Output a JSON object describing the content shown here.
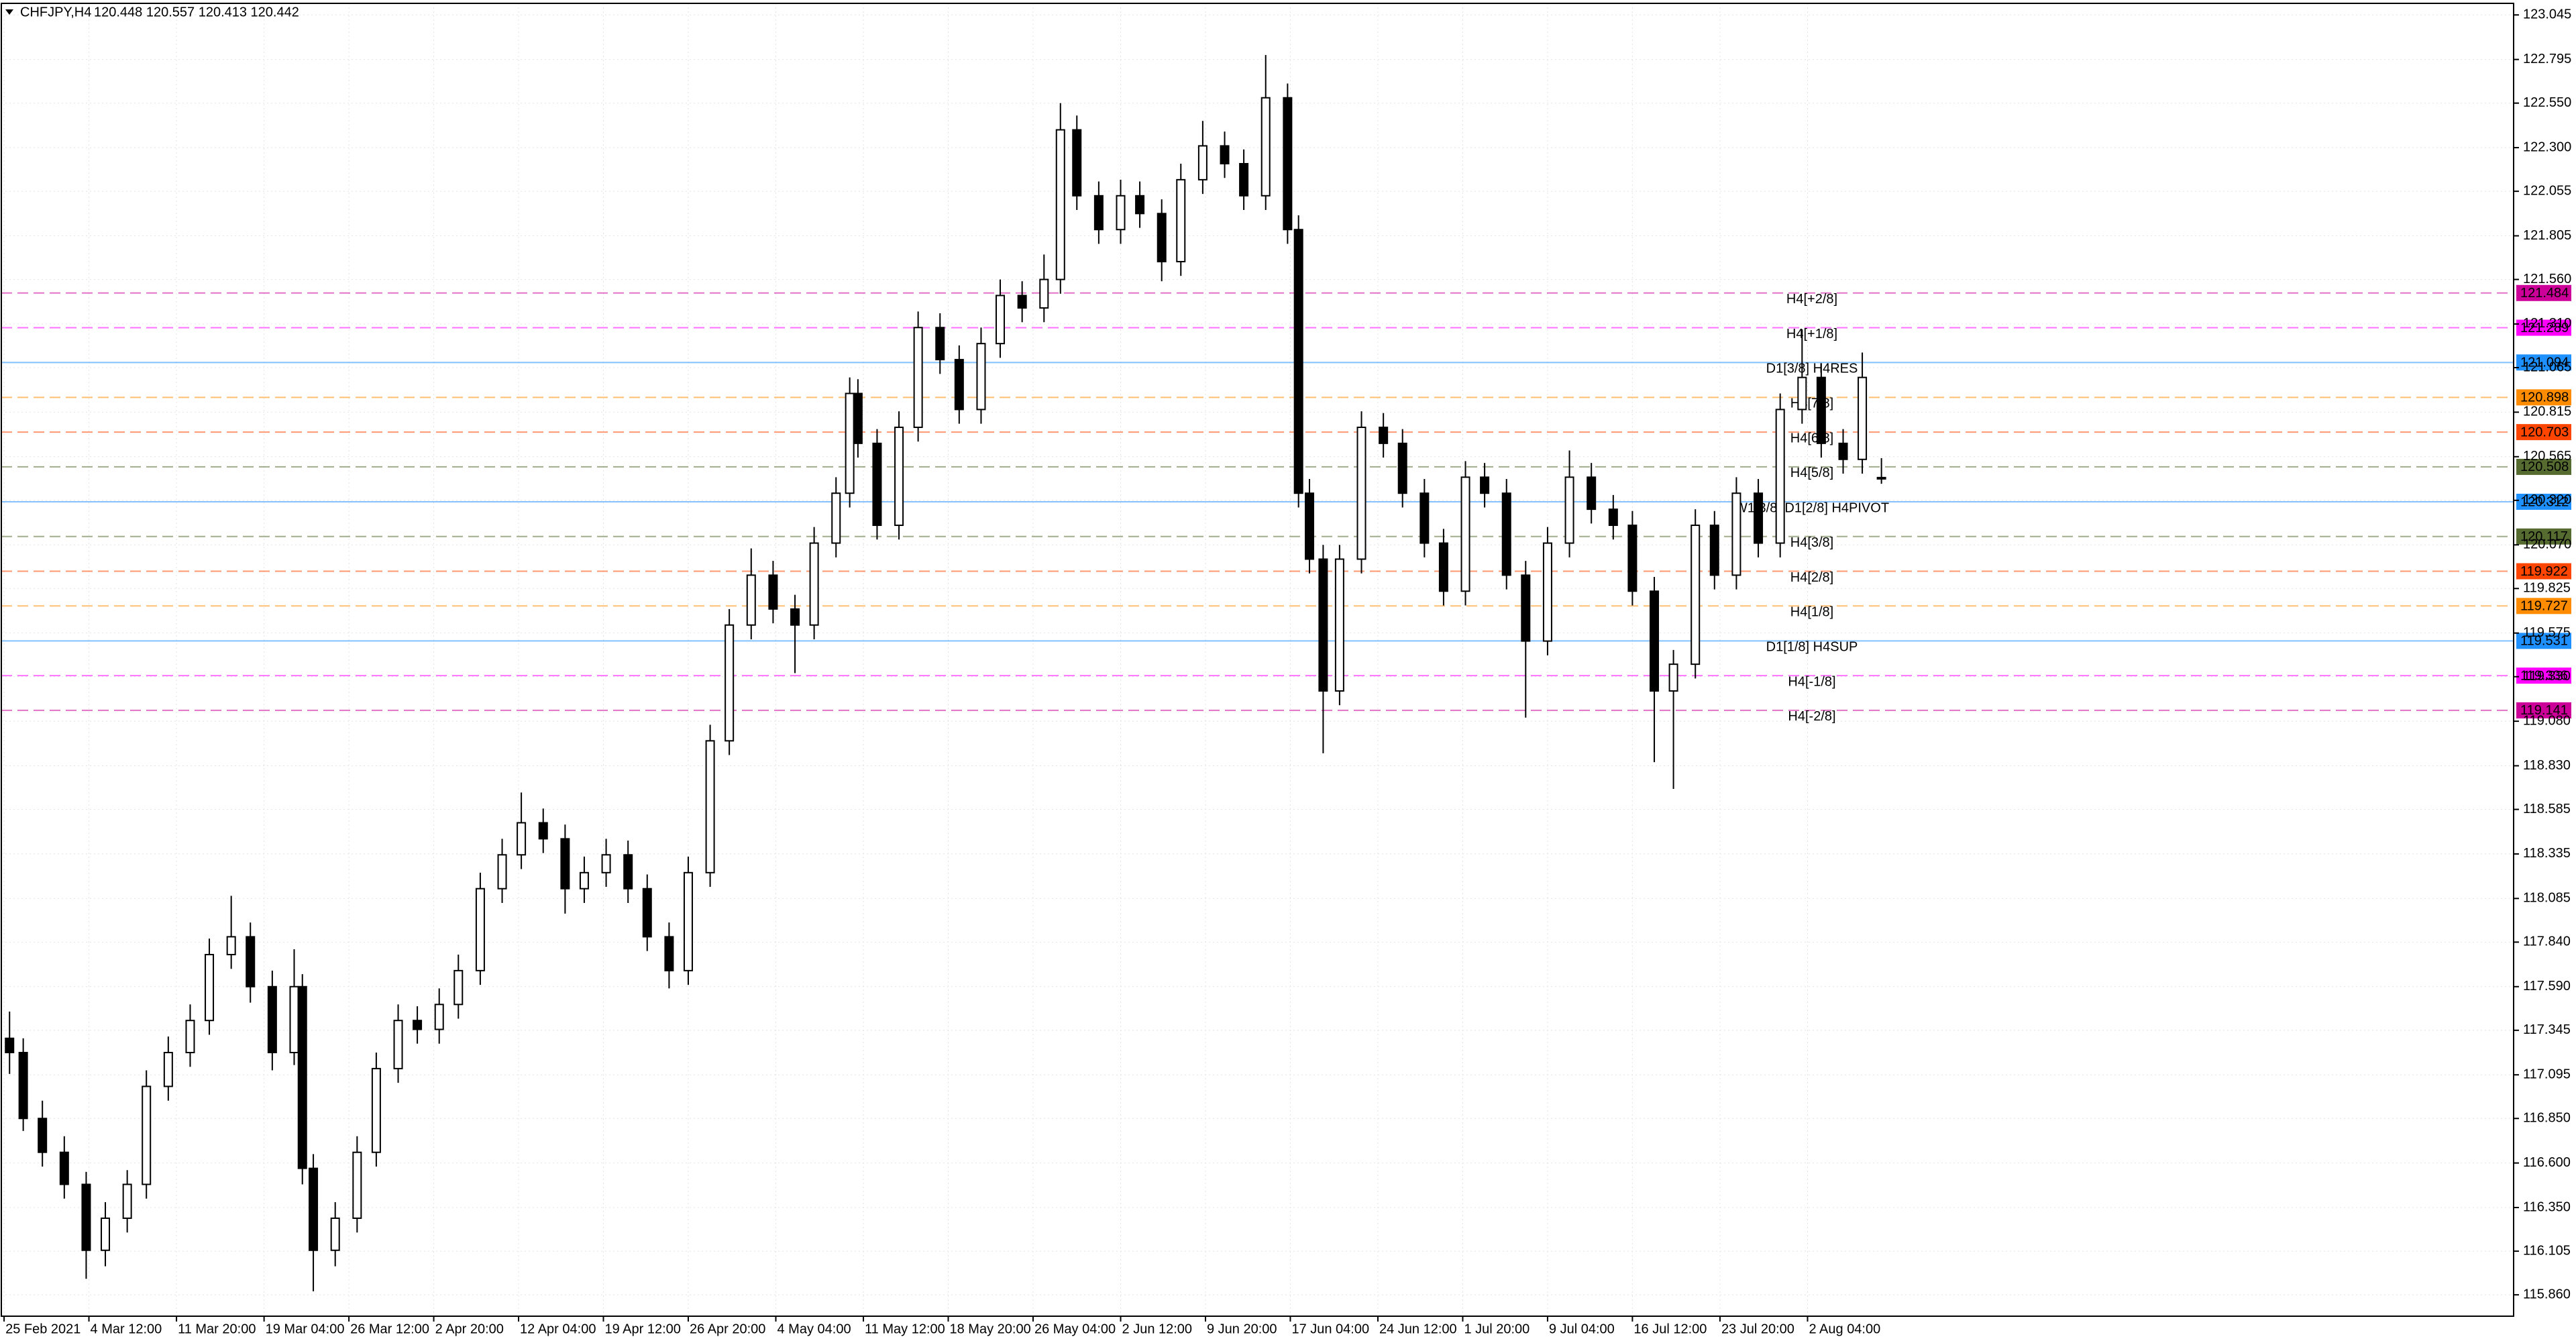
{
  "chart_data": {
    "type": "candlestick",
    "symbol": "CHFJPY,H4",
    "ohlc_text": "120.448 120.557 120.413 120.442",
    "bull_color": "#ffffff",
    "bear_color": "#000000",
    "wick_color": "#000000",
    "grid": true,
    "x": [
      3,
      8,
      15,
      23,
      31,
      38,
      46,
      53,
      61,
      69,
      76,
      84,
      91,
      99,
      107,
      110,
      114,
      122,
      130,
      137,
      145,
      152,
      160,
      167,
      175,
      183,
      190,
      198,
      206,
      213,
      221,
      229,
      236,
      244,
      251,
      259,
      266,
      274,
      282,
      290,
      297,
      305,
      310,
      313,
      320,
      328,
      335,
      343,
      350,
      358,
      365,
      373,
      381,
      387,
      393,
      401,
      409,
      416,
      424,
      431,
      439,
      447,
      454,
      462,
      470,
      474,
      478,
      483,
      489,
      497,
      505,
      512,
      520,
      527,
      535,
      542,
      550,
      557,
      565,
      573,
      581,
      589,
      596,
      604,
      611,
      619,
      626,
      634,
      642,
      650,
      658,
      665,
      673,
      680,
      687
    ],
    "open": [
      117.3,
      117.22,
      116.85,
      116.66,
      116.48,
      116.11,
      116.29,
      116.48,
      117.03,
      117.22,
      117.4,
      117.77,
      117.87,
      117.59,
      117.22,
      117.59,
      116.57,
      116.11,
      116.29,
      116.66,
      117.13,
      117.4,
      117.35,
      117.49,
      117.68,
      118.14,
      118.33,
      118.51,
      118.42,
      118.14,
      118.23,
      118.33,
      118.14,
      117.87,
      117.68,
      118.23,
      118.97,
      119.62,
      119.9,
      119.71,
      119.62,
      120.08,
      120.36,
      120.92,
      120.64,
      120.18,
      120.73,
      121.29,
      121.11,
      120.83,
      121.2,
      121.47,
      121.4,
      121.56,
      122.4,
      122.03,
      121.84,
      122.03,
      121.93,
      121.66,
      122.12,
      122.31,
      122.21,
      122.03,
      122.58,
      121.84,
      120.36,
      119.99,
      119.25,
      119.99,
      120.73,
      120.64,
      120.36,
      120.08,
      119.81,
      120.45,
      120.36,
      119.9,
      119.53,
      120.08,
      120.45,
      120.27,
      120.18,
      119.81,
      119.25,
      119.4,
      120.18,
      119.9,
      120.36,
      120.08,
      120.83,
      121.01,
      120.64,
      120.55,
      120.448
    ],
    "high": [
      117.45,
      117.3,
      116.95,
      116.75,
      116.55,
      116.38,
      116.56,
      117.12,
      117.31,
      117.49,
      117.86,
      118.1,
      117.95,
      117.68,
      117.8,
      117.66,
      116.65,
      116.38,
      116.75,
      117.22,
      117.49,
      117.48,
      117.58,
      117.77,
      118.23,
      118.42,
      118.68,
      118.59,
      118.5,
      118.32,
      118.42,
      118.41,
      118.22,
      117.95,
      118.32,
      119.06,
      119.71,
      120.05,
      119.98,
      119.79,
      120.17,
      120.45,
      121.01,
      121.0,
      120.72,
      120.82,
      121.38,
      121.37,
      121.19,
      121.29,
      121.56,
      121.55,
      121.7,
      122.55,
      122.48,
      122.11,
      122.12,
      122.11,
      122.01,
      122.21,
      122.45,
      122.39,
      122.29,
      122.82,
      122.66,
      121.92,
      120.44,
      120.07,
      120.07,
      120.82,
      120.81,
      120.72,
      120.44,
      120.16,
      120.54,
      120.53,
      120.44,
      119.98,
      120.17,
      120.6,
      120.53,
      120.35,
      120.26,
      119.89,
      119.48,
      120.27,
      120.26,
      120.45,
      120.44,
      120.92,
      121.28,
      121.09,
      120.72,
      121.15,
      120.557
    ],
    "low": [
      117.1,
      116.78,
      116.58,
      116.4,
      115.95,
      116.02,
      116.21,
      116.4,
      116.95,
      117.14,
      117.32,
      117.69,
      117.5,
      117.12,
      117.15,
      116.48,
      115.88,
      116.02,
      116.21,
      116.58,
      117.05,
      117.27,
      117.27,
      117.41,
      117.6,
      118.06,
      118.25,
      118.34,
      118.0,
      118.06,
      118.15,
      118.06,
      117.79,
      117.58,
      117.6,
      118.15,
      118.89,
      119.54,
      119.63,
      119.35,
      119.54,
      120.0,
      120.28,
      120.56,
      120.1,
      120.1,
      120.65,
      121.03,
      120.75,
      120.75,
      121.12,
      121.32,
      121.32,
      121.48,
      121.95,
      121.76,
      121.76,
      121.85,
      121.55,
      121.58,
      122.04,
      122.13,
      121.95,
      121.95,
      121.76,
      120.28,
      119.91,
      118.9,
      119.17,
      119.91,
      120.56,
      120.28,
      120.0,
      119.73,
      119.73,
      120.28,
      119.82,
      119.1,
      119.45,
      120.0,
      120.19,
      120.1,
      119.73,
      118.85,
      118.7,
      119.32,
      119.82,
      119.82,
      120.0,
      120.0,
      120.75,
      120.56,
      120.47,
      120.47,
      120.413
    ],
    "close": [
      117.22,
      116.85,
      116.66,
      116.48,
      116.11,
      116.29,
      116.48,
      117.03,
      117.22,
      117.4,
      117.77,
      117.87,
      117.59,
      117.22,
      117.59,
      116.57,
      116.11,
      116.29,
      116.66,
      117.13,
      117.4,
      117.35,
      117.49,
      117.68,
      118.14,
      118.33,
      118.51,
      118.42,
      118.14,
      118.23,
      118.33,
      118.14,
      117.87,
      117.68,
      118.23,
      118.97,
      119.62,
      119.9,
      119.71,
      119.62,
      120.08,
      120.36,
      120.92,
      120.64,
      120.18,
      120.73,
      121.29,
      121.11,
      120.83,
      121.2,
      121.47,
      121.4,
      121.56,
      122.4,
      122.03,
      121.84,
      122.03,
      121.93,
      121.66,
      122.12,
      122.31,
      122.21,
      122.03,
      122.58,
      121.84,
      120.36,
      119.99,
      119.25,
      119.99,
      120.73,
      120.64,
      120.36,
      120.08,
      119.81,
      120.45,
      120.36,
      119.9,
      119.53,
      120.08,
      120.45,
      120.27,
      120.18,
      119.81,
      119.25,
      119.4,
      120.18,
      119.9,
      120.36,
      120.08,
      120.83,
      121.01,
      120.64,
      120.55,
      121.01,
      120.442
    ],
    "xlim": [
      0,
      918
    ],
    "xticks": [
      {
        "value": 1,
        "label": "25 Feb 2021"
      },
      {
        "value": 32,
        "label": "4 Mar 12:00"
      },
      {
        "value": 64,
        "label": "11 Mar 20:00"
      },
      {
        "value": 96,
        "label": "19 Mar 04:00"
      },
      {
        "value": 127,
        "label": "26 Mar 12:00"
      },
      {
        "value": 158,
        "label": "2 Apr 20:00"
      },
      {
        "value": 189,
        "label": "12 Apr 04:00"
      },
      {
        "value": 220,
        "label": "19 Apr 12:00"
      },
      {
        "value": 251,
        "label": "26 Apr 20:00"
      },
      {
        "value": 283,
        "label": "4 May 04:00"
      },
      {
        "value": 315,
        "label": "11 May 12:00"
      },
      {
        "value": 346,
        "label": "18 May 20:00"
      },
      {
        "value": 377,
        "label": "26 May 04:00"
      },
      {
        "value": 409,
        "label": "2 Jun 12:00"
      },
      {
        "value": 440,
        "label": "9 Jun 20:00"
      },
      {
        "value": 471,
        "label": "17 Jun 04:00"
      },
      {
        "value": 503,
        "label": "24 Jun 12:00"
      },
      {
        "value": 534,
        "label": "1 Jul 20:00"
      },
      {
        "value": 565,
        "label": "9 Jul 04:00"
      },
      {
        "value": 596,
        "label": "16 Jul 12:00"
      },
      {
        "value": 628,
        "label": "23 Jul 20:00"
      },
      {
        "value": 660,
        "label": "2 Aug 04:00"
      }
    ],
    "ylim": [
      115.74,
      123.11
    ],
    "yticks": [
      123.045,
      122.795,
      {
        "value": 122.55,
        "label": "122.550"
      },
      {
        "value": 122.3,
        "label": "122.300"
      },
      122.055,
      121.805,
      {
        "value": 121.56,
        "label": "121.560"
      },
      {
        "value": 121.31,
        "label": "121.310"
      },
      121.065,
      120.815,
      120.565,
      {
        "value": 120.32,
        "label": "120.320"
      },
      {
        "value": 120.07,
        "label": "120.070"
      },
      119.825,
      119.575,
      {
        "value": 119.33,
        "label": "119.330"
      },
      {
        "value": 119.08,
        "label": "119.080"
      },
      {
        "value": 118.83,
        "label": "118.830"
      },
      118.585,
      118.335,
      118.085,
      {
        "value": 117.84,
        "label": "117.840"
      },
      {
        "value": 117.59,
        "label": "117.590"
      },
      117.345,
      117.095,
      {
        "value": 116.85,
        "label": "116.850"
      },
      {
        "value": 116.6,
        "label": "116.600"
      },
      {
        "value": 116.35,
        "label": "116.350"
      },
      116.105,
      {
        "value": 115.86,
        "label": "115.860"
      }
    ],
    "levels": [
      {
        "label": "H4[+2/8]",
        "value": 121.484,
        "color": "#cc0099",
        "style": "dashed"
      },
      {
        "label": "H4[+1/8]",
        "value": 121.289,
        "color": "#ff00ff",
        "style": "dashed"
      },
      {
        "label": "D1[3/8] H4RES",
        "value": 121.094,
        "color": "#1e90ff",
        "style": "solid"
      },
      {
        "label": "H4[7/8]",
        "value": 120.898,
        "color": "#ff8c00",
        "style": "dashed"
      },
      {
        "label": "H4[6/8]",
        "value": 120.703,
        "color": "#ff4500",
        "style": "dashed"
      },
      {
        "label": "H4[5/8]",
        "value": 120.508,
        "color": "#556b2f",
        "style": "dashed"
      },
      {
        "label": "W1[3/8] D1[2/8] H4PIVOT",
        "value": 120.312,
        "color": "#1e90ff",
        "style": "solid"
      },
      {
        "label": "H4[3/8]",
        "value": 120.117,
        "color": "#556b2f",
        "style": "dashed"
      },
      {
        "label": "H4[2/8]",
        "value": 119.922,
        "color": "#ff4500",
        "style": "dashed"
      },
      {
        "label": "H4[1/8]",
        "value": 119.727,
        "color": "#ff8c00",
        "style": "dashed"
      },
      {
        "label": "D1[1/8] H4SUP",
        "value": 119.531,
        "color": "#1e90ff",
        "style": "solid"
      },
      {
        "label": "H4[-1/8]",
        "value": 119.336,
        "color": "#ff00ff",
        "style": "dashed"
      },
      {
        "label": "H4[-2/8]",
        "value": 119.141,
        "color": "#cc0099",
        "style": "dashed"
      }
    ]
  }
}
